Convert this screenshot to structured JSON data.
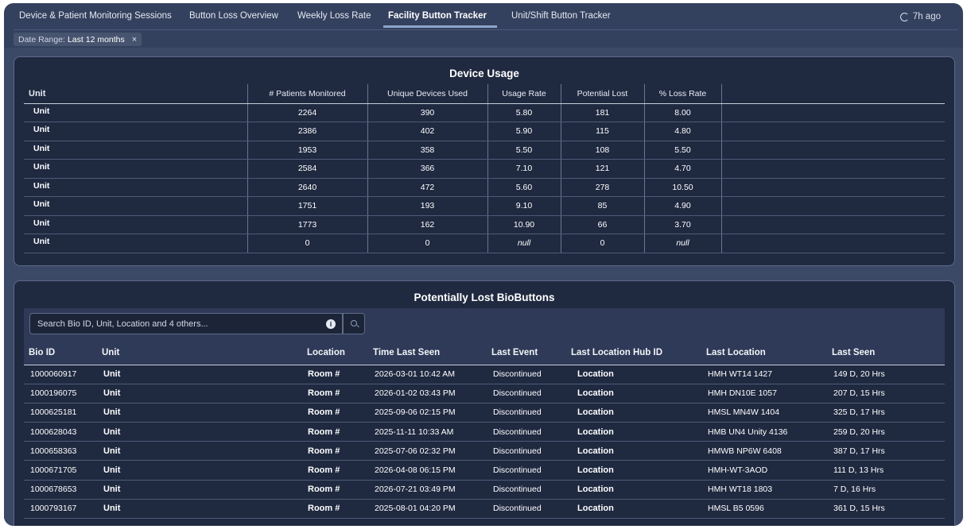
{
  "tabs": [
    {
      "label": "Device & Patient Monitoring Sessions"
    },
    {
      "label": "Button Loss Overview"
    },
    {
      "label": "Weekly Loss Rate"
    },
    {
      "label": "Facility Button Tracker"
    },
    {
      "label": "Unit/Shift Button Tracker"
    }
  ],
  "active_tab": "Facility Button Tracker",
  "refresh": {
    "label": "7h ago",
    "icon": "refresh-icon"
  },
  "filter_chip": {
    "key": "Date Range:",
    "value": "Last 12 months",
    "remove": "×"
  },
  "device_usage": {
    "title": "Device Usage",
    "columns": [
      "Unit",
      "# Patients Monitored",
      "Unique Devices Used",
      "Usage Rate",
      "Potential Lost",
      "% Loss Rate"
    ],
    "rows": [
      [
        "Unit",
        "2264",
        "390",
        "5.80",
        "181",
        "8.00"
      ],
      [
        "Unit",
        "2386",
        "402",
        "5.90",
        "115",
        "4.80"
      ],
      [
        "Unit",
        "1953",
        "358",
        "5.50",
        "108",
        "5.50"
      ],
      [
        "Unit",
        "2584",
        "366",
        "7.10",
        "121",
        "4.70"
      ],
      [
        "Unit",
        "2640",
        "472",
        "5.60",
        "278",
        "10.50"
      ],
      [
        "Unit",
        "1751",
        "193",
        "9.10",
        "85",
        "4.90"
      ],
      [
        "Unit",
        "1773",
        "162",
        "10.90",
        "66",
        "3.70"
      ],
      [
        "Unit",
        "0",
        "0",
        "null",
        "0",
        "null"
      ]
    ]
  },
  "lost_buttons": {
    "title": "Potentially Lost BioButtons",
    "search": {
      "placeholder": "Search Bio ID, Unit, Location and 4 others...",
      "info_icon": "info-icon",
      "button_icon": "search-icon",
      "info_glyph": "i"
    },
    "columns": [
      "Bio ID",
      "Unit",
      "Location",
      "Time Last Seen",
      "Last Event",
      "Last Location Hub ID",
      "Last Location",
      "Last Seen"
    ],
    "rows": [
      [
        "1000060917",
        "Unit",
        "Room #",
        "2026-03-01 10:42 AM",
        "Discontinued",
        "Location",
        "HMH WT14 1427",
        "149 D, 20 Hrs"
      ],
      [
        "1000196075",
        "Unit",
        "Room #",
        "2026-01-02 03:43 PM",
        "Discontinued",
        "Location",
        "HMH DN10E 1057",
        "207 D, 15 Hrs"
      ],
      [
        "1000625181",
        "Unit",
        "Room #",
        "2025-09-06 02:15 PM",
        "Discontinued",
        "Location",
        "HMSL MN4W 1404",
        "325 D, 17 Hrs"
      ],
      [
        "1000628043",
        "Unit",
        "Room #",
        "2025-11-11 10:33 AM",
        "Discontinued",
        "Location",
        "HMB UN4 Unity 4136",
        "259 D, 20 Hrs"
      ],
      [
        "1000658363",
        "Unit",
        "Room #",
        "2025-07-06 02:32 PM",
        "Discontinued",
        "Location",
        "HMWB NP6W 6408",
        "387 D, 17 Hrs"
      ],
      [
        "1000671705",
        "Unit",
        "Room #",
        "2026-04-08 06:15 PM",
        "Discontinued",
        "Location",
        "HMH-WT-3AOD",
        "111 D, 13 Hrs"
      ],
      [
        "1000678653",
        "Unit",
        "Room #",
        "2026-07-21 03:49 PM",
        "Discontinued",
        "Location",
        "HMH WT18 1803",
        "7 D, 16 Hrs"
      ],
      [
        "1000793167",
        "Unit",
        "Room #",
        "2025-08-01 04:20 PM",
        "Discontinued",
        "Location",
        "HMSL B5 0596",
        "361 D, 15 Hrs"
      ]
    ]
  }
}
